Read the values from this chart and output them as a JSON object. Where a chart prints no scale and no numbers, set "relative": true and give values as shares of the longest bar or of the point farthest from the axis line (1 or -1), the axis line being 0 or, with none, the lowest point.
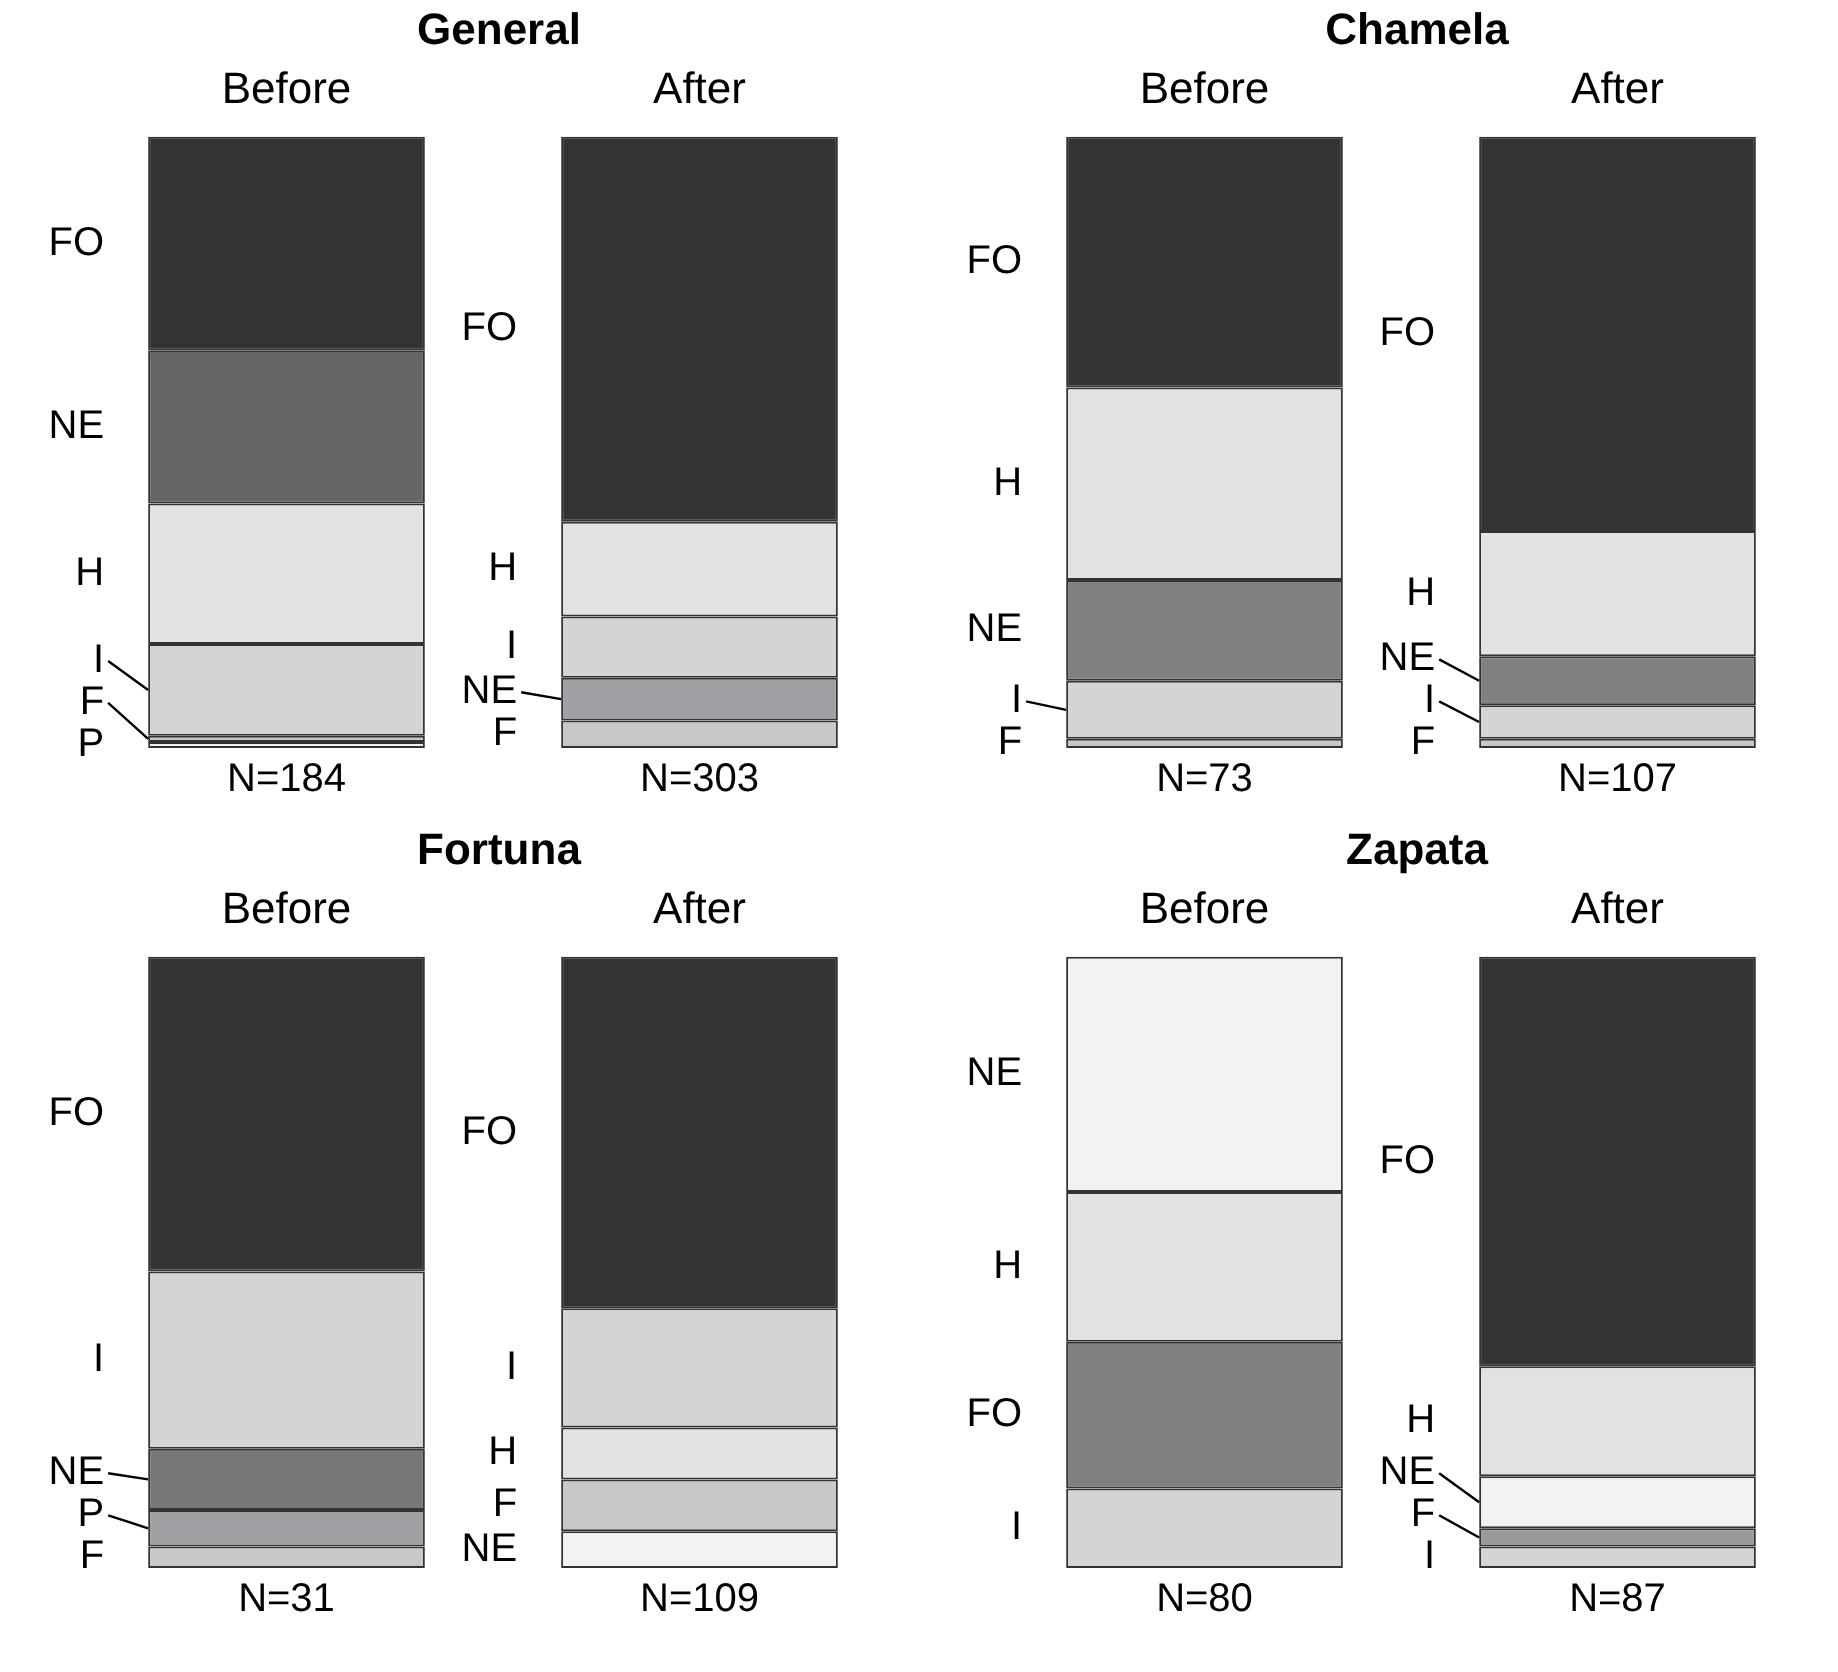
{
  "chart_data": [
    {
      "type": "bar",
      "title": "General",
      "categories": [
        "Before",
        "After"
      ],
      "stacked": true,
      "relative": true,
      "legend": false,
      "series": [
        {
          "name": "P",
          "color": "#f4f4f4",
          "values": [
            0.01,
            null
          ]
        },
        {
          "name": "F",
          "color": "#c8c8c8",
          "values": [
            0.01,
            null
          ]
        },
        {
          "name": "I",
          "color": "#d4d4d4",
          "values": [
            0.15,
            null
          ]
        },
        {
          "name": "H",
          "color": "#e2e2e2",
          "values": [
            0.23,
            null
          ]
        },
        {
          "name": "NE",
          "color": "#666666",
          "values": [
            0.25,
            null
          ]
        },
        {
          "name": "FO",
          "color": "#333333",
          "values": [
            0.35,
            null
          ]
        },
        {
          "name": "F",
          "color": "#c8c8c8",
          "values": [
            null,
            0.045
          ]
        },
        {
          "name": "NE",
          "color": "#a0a0a4",
          "values": [
            null,
            0.07
          ]
        },
        {
          "name": "I",
          "color": "#d4d4d4",
          "values": [
            null,
            0.1
          ]
        },
        {
          "name": "H",
          "color": "#e2e2e2",
          "values": [
            null,
            0.155
          ]
        },
        {
          "name": "FO",
          "color": "#333333",
          "values": [
            null,
            0.63
          ]
        }
      ],
      "annotations": [
        "N=184",
        "N=303"
      ]
    },
    {
      "type": "bar",
      "title": "Chamela",
      "categories": [
        "Before",
        "After"
      ],
      "stacked": true,
      "relative": true,
      "legend": false,
      "series": [
        {
          "name": "F",
          "color": "#c8c8c8",
          "values": [
            0.015,
            null
          ]
        },
        {
          "name": "I",
          "color": "#d4d4d4",
          "values": [
            0.095,
            null
          ]
        },
        {
          "name": "NE",
          "color": "#808080",
          "values": [
            0.165,
            null
          ]
        },
        {
          "name": "H",
          "color": "#e2e2e2",
          "values": [
            0.315,
            null
          ]
        },
        {
          "name": "FO",
          "color": "#333333",
          "values": [
            0.41,
            null
          ]
        },
        {
          "name": "F",
          "color": "#c8c8c8",
          "values": [
            null,
            0.015
          ]
        },
        {
          "name": "I",
          "color": "#d4d4d4",
          "values": [
            null,
            0.055
          ]
        },
        {
          "name": "NE",
          "color": "#808080",
          "values": [
            null,
            0.08
          ]
        },
        {
          "name": "H",
          "color": "#e2e2e2",
          "values": [
            null,
            0.205
          ]
        },
        {
          "name": "FO",
          "color": "#333333",
          "values": [
            null,
            0.645
          ]
        }
      ],
      "annotations": [
        "N=73",
        "N=107"
      ]
    },
    {
      "type": "bar",
      "title": "Fortuna",
      "categories": [
        "Before",
        "After"
      ],
      "stacked": true,
      "relative": true,
      "legend": false,
      "series": [
        {
          "name": "F",
          "color": "#c8c8c8",
          "values": [
            0.035,
            null
          ]
        },
        {
          "name": "P",
          "color": "#a0a0a4",
          "values": [
            0.06,
            null
          ]
        },
        {
          "name": "NE",
          "color": "#777777",
          "values": [
            0.1,
            null
          ]
        },
        {
          "name": "I",
          "color": "#d4d4d4",
          "values": [
            0.29,
            null
          ]
        },
        {
          "name": "FO",
          "color": "#333333",
          "values": [
            0.515,
            null
          ]
        },
        {
          "name": "NE",
          "color": "#f2f2f2",
          "values": [
            null,
            0.06
          ]
        },
        {
          "name": "F",
          "color": "#c8c8c8",
          "values": [
            null,
            0.085
          ]
        },
        {
          "name": "H",
          "color": "#e2e2e2",
          "values": [
            null,
            0.085
          ]
        },
        {
          "name": "I",
          "color": "#d4d4d4",
          "values": [
            null,
            0.195
          ]
        },
        {
          "name": "FO",
          "color": "#333333",
          "values": [
            null,
            0.575
          ]
        }
      ],
      "annotations": [
        "N=31",
        "N=109"
      ]
    },
    {
      "type": "bar",
      "title": "Zapata",
      "categories": [
        "Before",
        "After"
      ],
      "stacked": true,
      "relative": true,
      "legend": false,
      "series": [
        {
          "name": "I",
          "color": "#d4d4d4",
          "values": [
            0.13,
            null
          ]
        },
        {
          "name": "FO",
          "color": "#808080",
          "values": [
            0.24,
            null
          ]
        },
        {
          "name": "H",
          "color": "#e2e2e2",
          "values": [
            0.245,
            null
          ]
        },
        {
          "name": "NE",
          "color": "#f2f2f2",
          "values": [
            0.385,
            null
          ]
        },
        {
          "name": "I",
          "color": "#d4d4d4",
          "values": [
            null,
            0.035
          ]
        },
        {
          "name": "F",
          "color": "#999999",
          "values": [
            null,
            0.03
          ]
        },
        {
          "name": "NE",
          "color": "#f2f2f2",
          "values": [
            null,
            0.085
          ]
        },
        {
          "name": "H",
          "color": "#e2e2e2",
          "values": [
            null,
            0.18
          ]
        },
        {
          "name": "FO",
          "color": "#333333",
          "values": [
            null,
            0.67
          ]
        }
      ],
      "annotations": [
        "N=80",
        "N=87"
      ]
    }
  ]
}
